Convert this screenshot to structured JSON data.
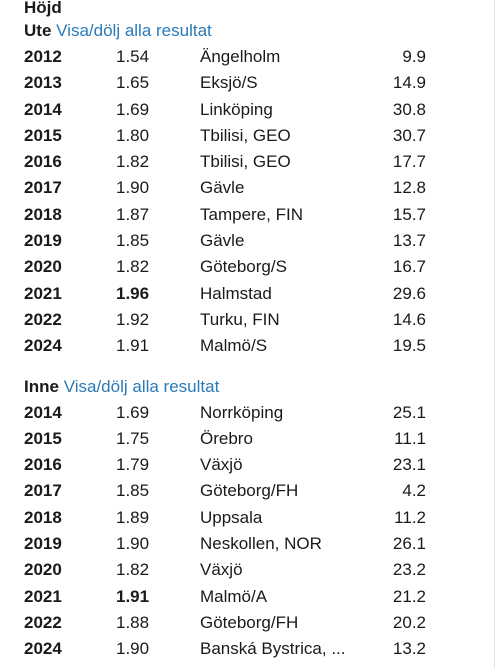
{
  "heading": "Höjd",
  "sections": [
    {
      "kind": "Ute",
      "toggle": "Visa/dölj alla resultat",
      "rows": [
        {
          "year": "2012",
          "result": "1.54",
          "place": "Ängelholm",
          "points": "9.9",
          "best": false
        },
        {
          "year": "2013",
          "result": "1.65",
          "place": "Eksjö/S",
          "points": "14.9",
          "best": false
        },
        {
          "year": "2014",
          "result": "1.69",
          "place": "Linköping",
          "points": "30.8",
          "best": false
        },
        {
          "year": "2015",
          "result": "1.80",
          "place": "Tbilisi, GEO",
          "points": "30.7",
          "best": false
        },
        {
          "year": "2016",
          "result": "1.82",
          "place": "Tbilisi, GEO",
          "points": "17.7",
          "best": false
        },
        {
          "year": "2017",
          "result": "1.90",
          "place": "Gävle",
          "points": "12.8",
          "best": false
        },
        {
          "year": "2018",
          "result": "1.87",
          "place": "Tampere, FIN",
          "points": "15.7",
          "best": false
        },
        {
          "year": "2019",
          "result": "1.85",
          "place": "Gävle",
          "points": "13.7",
          "best": false
        },
        {
          "year": "2020",
          "result": "1.82",
          "place": "Göteborg/S",
          "points": "16.7",
          "best": false
        },
        {
          "year": "2021",
          "result": "1.96",
          "place": "Halmstad",
          "points": "29.6",
          "best": true
        },
        {
          "year": "2022",
          "result": "1.92",
          "place": "Turku, FIN",
          "points": "14.6",
          "best": false
        },
        {
          "year": "2024",
          "result": "1.91",
          "place": "Malmö/S",
          "points": "19.5",
          "best": false
        }
      ]
    },
    {
      "kind": "Inne",
      "toggle": "Visa/dölj alla resultat",
      "rows": [
        {
          "year": "2014",
          "result": "1.69",
          "place": "Norrköping",
          "points": "25.1",
          "best": false
        },
        {
          "year": "2015",
          "result": "1.75",
          "place": "Örebro",
          "points": "11.1",
          "best": false
        },
        {
          "year": "2016",
          "result": "1.79",
          "place": "Växjö",
          "points": "23.1",
          "best": false
        },
        {
          "year": "2017",
          "result": "1.85",
          "place": "Göteborg/FH",
          "points": "4.2",
          "best": false
        },
        {
          "year": "2018",
          "result": "1.89",
          "place": "Uppsala",
          "points": "11.2",
          "best": false
        },
        {
          "year": "2019",
          "result": "1.90",
          "place": "Neskollen, NOR",
          "points": "26.1",
          "best": false
        },
        {
          "year": "2020",
          "result": "1.82",
          "place": "Växjö",
          "points": "23.2",
          "best": false
        },
        {
          "year": "2021",
          "result": "1.91",
          "place": "Malmö/A",
          "points": "21.2",
          "best": true
        },
        {
          "year": "2022",
          "result": "1.88",
          "place": "Göteborg/FH",
          "points": "20.2",
          "best": false
        },
        {
          "year": "2024",
          "result": "1.90",
          "place": "Banská Bystrica, ...",
          "points": "13.2",
          "best": false
        }
      ]
    }
  ]
}
